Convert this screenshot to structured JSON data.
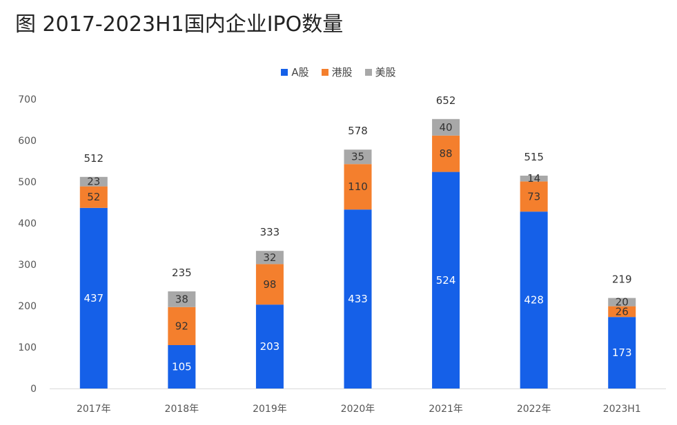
{
  "chart_data": {
    "type": "bar",
    "stacked": true,
    "title": "图 2017-2023H1国内企业IPO数量",
    "categories": [
      "2017年",
      "2018年",
      "2019年",
      "2020年",
      "2021年",
      "2022年",
      "2023H1"
    ],
    "series": [
      {
        "name": "A股",
        "color": "#1560e8",
        "values": [
          437,
          105,
          203,
          433,
          524,
          428,
          173
        ]
      },
      {
        "name": "港股",
        "color": "#f47f2d",
        "values": [
          52,
          92,
          98,
          110,
          88,
          73,
          26
        ]
      },
      {
        "name": "美股",
        "color": "#a8a8a8",
        "values": [
          23,
          38,
          32,
          35,
          40,
          14,
          20
        ]
      }
    ],
    "totals": [
      512,
      235,
      333,
      578,
      652,
      515,
      219
    ],
    "yticks": [
      "0",
      "100",
      "200",
      "300",
      "400",
      "500",
      "600",
      "700"
    ],
    "ylim": [
      0,
      700
    ],
    "legend_position": "top",
    "grid": false
  }
}
